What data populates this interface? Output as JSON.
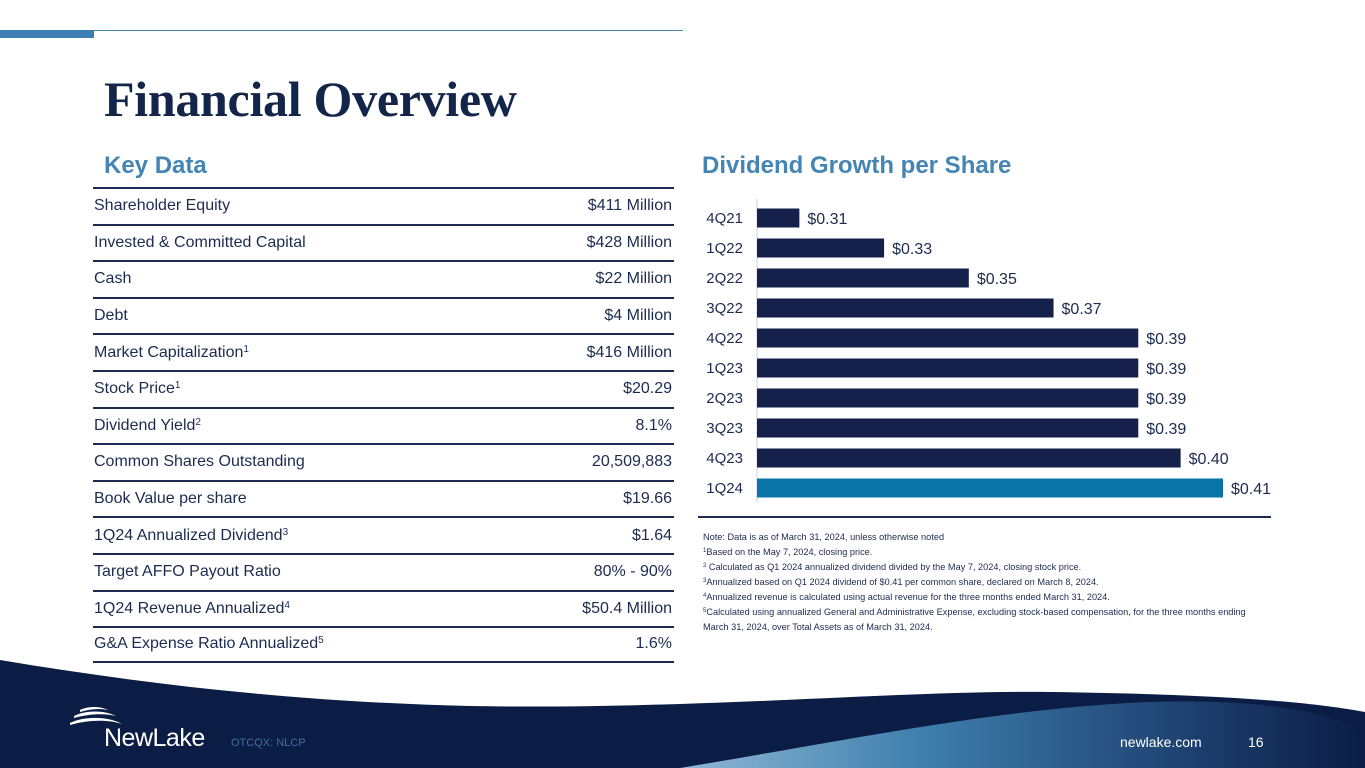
{
  "title": "Financial Overview",
  "key_data": {
    "heading": "Key Data",
    "rows": [
      {
        "label": "Shareholder Equity",
        "sup": "",
        "value": "$411 Million"
      },
      {
        "label": "Invested & Committed Capital",
        "sup": "",
        "value": "$428 Million"
      },
      {
        "label": "Cash",
        "sup": "",
        "value": "$22 Million"
      },
      {
        "label": "Debt",
        "sup": "",
        "value": "$4 Million"
      },
      {
        "label": "Market Capitalization",
        "sup": "1",
        "value": "$416 Million"
      },
      {
        "label": "Stock Price",
        "sup": "1",
        "value": "$20.29"
      },
      {
        "label": "Dividend Yield",
        "sup": "2",
        "value": "8.1%"
      },
      {
        "label": "Common Shares Outstanding",
        "sup": "",
        "value": "20,509,883"
      },
      {
        "label": "Book Value per share",
        "sup": "",
        "value": "$19.66"
      },
      {
        "label": "1Q24 Annualized Dividend",
        "sup": "3",
        "value": "$1.64"
      },
      {
        "label": "Target AFFO Payout Ratio",
        "sup": "",
        "value": "80% - 90%"
      },
      {
        "label": "1Q24 Revenue Annualized",
        "sup": "4",
        "value": "$50.4 Million"
      },
      {
        "label": "G&A Expense Ratio Annualized",
        "sup": "5",
        "value": "1.6%"
      }
    ]
  },
  "chart_data": {
    "type": "bar",
    "orientation": "horizontal",
    "title": "Dividend Growth per Share",
    "xlabel": "",
    "ylabel": "",
    "categories": [
      "4Q21",
      "1Q22",
      "2Q22",
      "3Q22",
      "4Q22",
      "1Q23",
      "2Q23",
      "3Q23",
      "4Q23",
      "1Q24"
    ],
    "values": [
      0.31,
      0.33,
      0.35,
      0.37,
      0.39,
      0.39,
      0.39,
      0.39,
      0.4,
      0.41
    ],
    "data_labels": [
      "$0.31",
      "$0.33",
      "$0.35",
      "$0.37",
      "$0.39",
      "$0.39",
      "$0.39",
      "$0.39",
      "$0.40",
      "$0.41"
    ],
    "xlim": [
      0.3,
      0.41
    ],
    "grid": false,
    "legend": "none",
    "colors": {
      "default": "#15214a",
      "highlight": "#0a74a6"
    },
    "highlight_category": "1Q24"
  },
  "notes": [
    {
      "sup": "",
      "text": "Note: Data is as of March 31, 2024, unless otherwise noted"
    },
    {
      "sup": "1",
      "text": "Based on the May 7, 2024, closing price."
    },
    {
      "sup": "2",
      "text": " Calculated as Q1 2024 annualized dividend divided by the May 7, 2024, closing stock price."
    },
    {
      "sup": "3",
      "text": "Annualized based on Q1 2024 dividend of $0.41 per common share, declared on March 8, 2024."
    },
    {
      "sup": "4",
      "text": "Annualized revenue is calculated using actual revenue for the three months ended March 31, 2024."
    },
    {
      "sup": "5",
      "text": "Calculated using annualized General and Administrative Expense, excluding stock-based compensation, for the three months ending March 31, 2024, over Total Assets as of March 31, 2024."
    }
  ],
  "footer": {
    "logo_text": "NewLake",
    "ticker": "OTCQX: NLCP",
    "website": "newlake.com",
    "page_number": "16"
  },
  "colors": {
    "navy": "#0b1d44",
    "accent_blue": "#4585b4",
    "highlight_bar": "#0a74a6"
  }
}
